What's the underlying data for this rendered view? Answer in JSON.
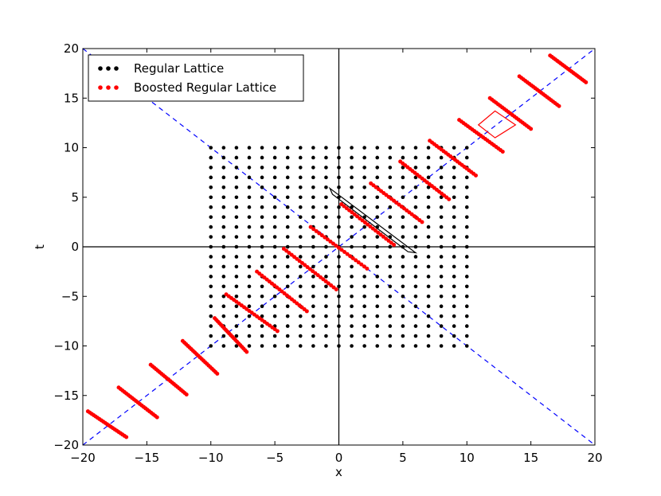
{
  "chart_data": {
    "type": "scatter",
    "xlabel": "x",
    "ylabel": "t",
    "xlim": [
      -20,
      20
    ],
    "ylim": [
      -20,
      20
    ],
    "xticks": [
      -20,
      -15,
      -10,
      -5,
      0,
      5,
      10,
      15,
      20
    ],
    "yticks": [
      -20,
      -15,
      -10,
      -5,
      0,
      5,
      10,
      15,
      20
    ],
    "grid": false,
    "legend_position": "top-left",
    "series": [
      {
        "name": "Regular Lattice",
        "color": "#000000",
        "kind": "grid",
        "x_range": [
          -10,
          10
        ],
        "y_range": [
          -10,
          10
        ],
        "step": 1
      },
      {
        "name": "Boosted Regular Lattice",
        "color": "#ff0000",
        "kind": "boosted-rows",
        "rows": [
          {
            "start": [
              -19.6,
              -16.6
            ],
            "end": [
              -16.6,
              -19.2
            ]
          },
          {
            "start": [
              -17.2,
              -14.2
            ],
            "end": [
              -14.2,
              -17.2
            ]
          },
          {
            "start": [
              -14.7,
              -11.9
            ],
            "end": [
              -11.9,
              -14.9
            ]
          },
          {
            "start": [
              -12.2,
              -9.5
            ],
            "end": [
              -9.5,
              -12.8
            ]
          },
          {
            "start": [
              -9.7,
              -7.2
            ],
            "end": [
              -7.2,
              -10.6
            ]
          },
          {
            "start": [
              -8.8,
              -4.8
            ],
            "end": [
              -4.8,
              -8.5
            ]
          },
          {
            "start": [
              -6.4,
              -2.5
            ],
            "end": [
              -2.5,
              -6.5
            ]
          },
          {
            "start": [
              -4.3,
              -0.2
            ],
            "end": [
              -0.2,
              -4.3
            ]
          },
          {
            "start": [
              -2.2,
              2.0
            ],
            "end": [
              2.2,
              -2.2
            ]
          },
          {
            "start": [
              0.2,
              4.3
            ],
            "end": [
              4.3,
              0.2
            ]
          },
          {
            "start": [
              2.5,
              6.4
            ],
            "end": [
              6.5,
              2.5
            ]
          },
          {
            "start": [
              4.8,
              8.6
            ],
            "end": [
              8.6,
              4.8
            ]
          },
          {
            "start": [
              7.1,
              10.7
            ],
            "end": [
              10.7,
              7.2
            ]
          },
          {
            "start": [
              9.4,
              12.8
            ],
            "end": [
              12.8,
              9.6
            ]
          },
          {
            "start": [
              11.8,
              15.0
            ],
            "end": [
              15.0,
              11.9
            ]
          },
          {
            "start": [
              14.1,
              17.2
            ],
            "end": [
              17.2,
              14.2
            ]
          },
          {
            "start": [
              16.5,
              19.3
            ],
            "end": [
              19.3,
              16.6
            ]
          }
        ],
        "points_per_row": 21
      }
    ],
    "lines": [
      {
        "name": "light-cone-positive",
        "color": "#0000ff",
        "style": "dashed",
        "points": [
          [
            -20,
            -20
          ],
          [
            20,
            20
          ]
        ]
      },
      {
        "name": "light-cone-negative",
        "color": "#0000ff",
        "style": "dashed",
        "points": [
          [
            -20,
            20
          ],
          [
            20,
            -20
          ]
        ]
      },
      {
        "name": "x-axis-line",
        "color": "#000000",
        "style": "solid",
        "points": [
          [
            -20,
            0
          ],
          [
            20,
            0
          ]
        ]
      },
      {
        "name": "t-axis-line",
        "color": "#000000",
        "style": "solid",
        "points": [
          [
            0,
            -20
          ],
          [
            0,
            20
          ]
        ]
      }
    ],
    "shapes": [
      {
        "name": "black-strip",
        "color": "#000000",
        "points": [
          [
            -0.7,
            5.9
          ],
          [
            6.0,
            -0.6
          ],
          [
            5.4,
            -0.5
          ],
          [
            -0.5,
            5.3
          ]
        ]
      },
      {
        "name": "red-cell",
        "color": "#ff0000",
        "points": [
          [
            10.9,
            12.3
          ],
          [
            12.2,
            13.7
          ],
          [
            13.8,
            12.3
          ],
          [
            12.2,
            11.0
          ]
        ]
      }
    ]
  }
}
